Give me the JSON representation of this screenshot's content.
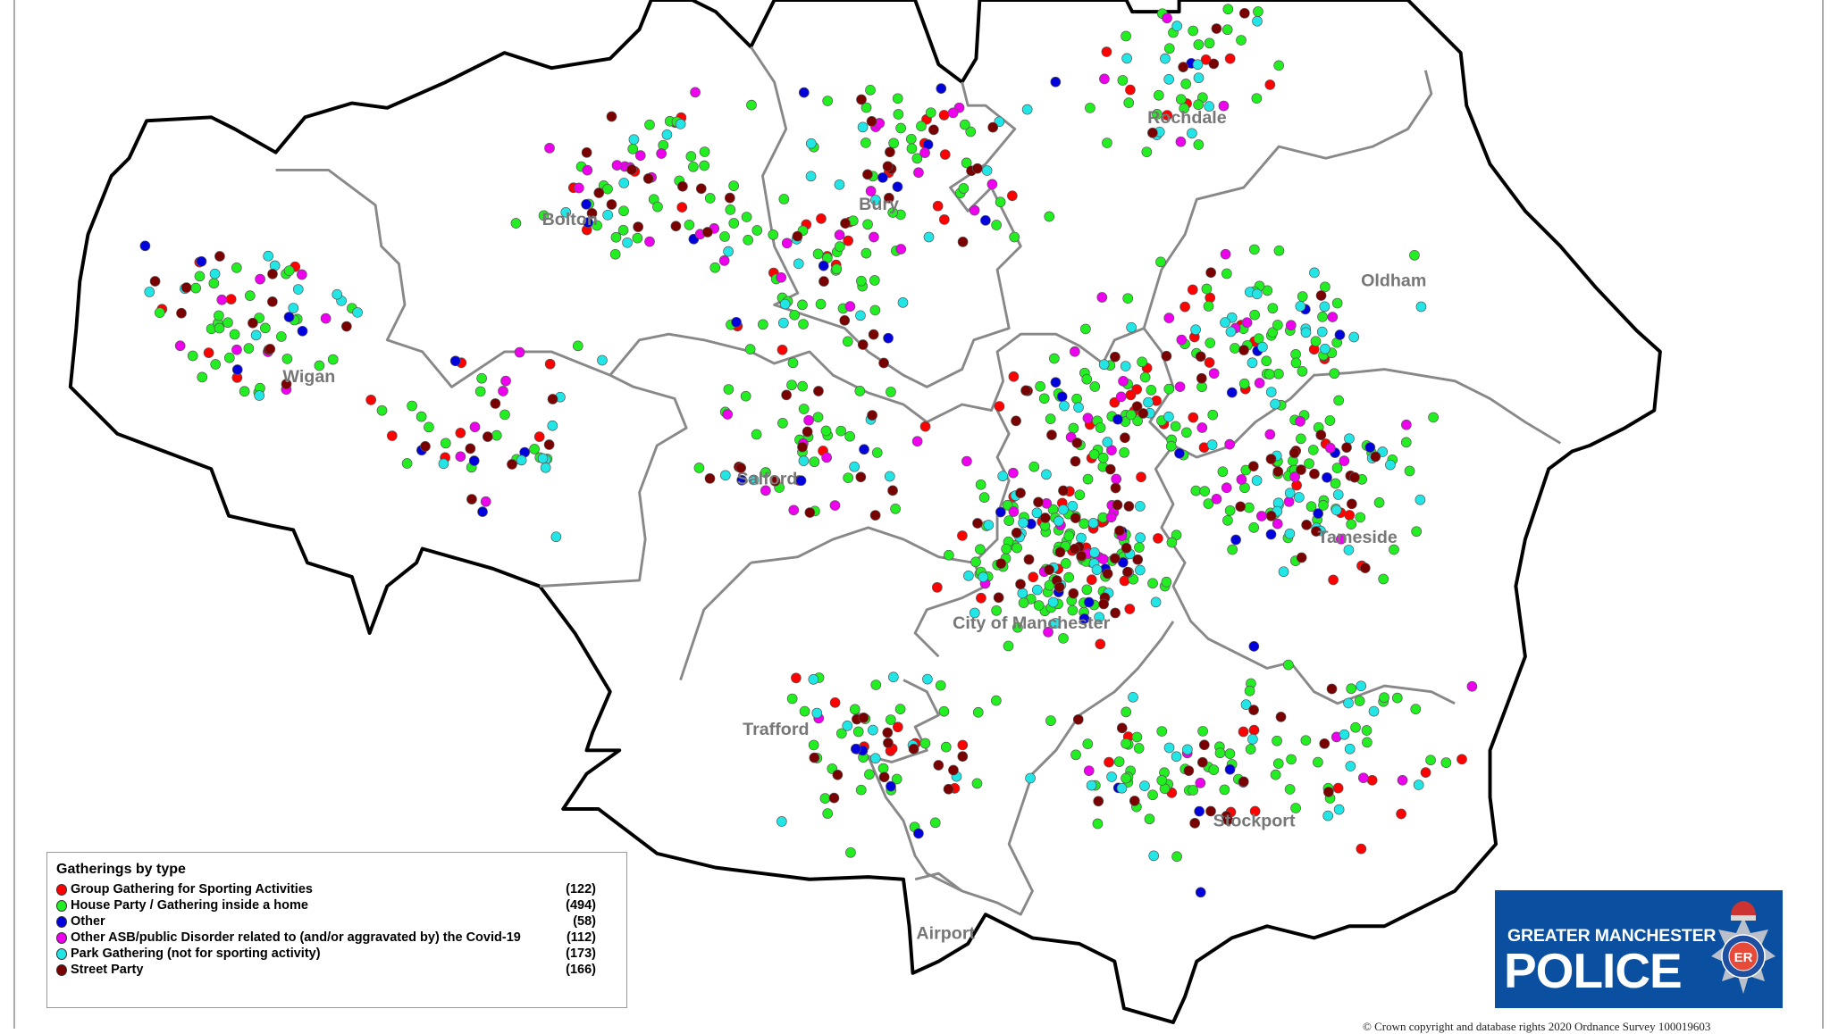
{
  "map": {
    "districts": [
      "Rochdale",
      "Bolton",
      "Bury",
      "Oldham",
      "Wigan",
      "Salford",
      "Tameside",
      "City of Manchester",
      "Trafford",
      "Stockport",
      "Airport"
    ]
  },
  "legend": {
    "title": "Gatherings by type",
    "items": [
      {
        "label": "Group Gathering for Sporting Activities",
        "count": "(122)",
        "value": 122,
        "color": "#ff0000"
      },
      {
        "label": "House Party / Gathering inside a home",
        "count": "(494)",
        "value": 494,
        "color": "#22ee22"
      },
      {
        "label": "Other",
        "count": "(58)",
        "value": 58,
        "color": "#0000dd"
      },
      {
        "label": "Other ASB/public Disorder related to (and/or aggravated by) the Covid-19",
        "count": "(112)",
        "value": 112,
        "color": "#ee00ee"
      },
      {
        "label": "Park Gathering (not for sporting activity)",
        "count": "(173)",
        "value": 173,
        "color": "#22e6e6"
      },
      {
        "label": "Street Party",
        "count": "(166)",
        "value": 166,
        "color": "#7a0000"
      }
    ]
  },
  "logo": {
    "line1": "GREATER MANCHESTER",
    "line2": "POLICE",
    "badge_text": "GREATER MANCHESTER POLICE ER",
    "brand_color": "#0b50a0"
  },
  "copyright": "© Crown copyright and database rights 2020 Ordnance Survey 100019603"
}
